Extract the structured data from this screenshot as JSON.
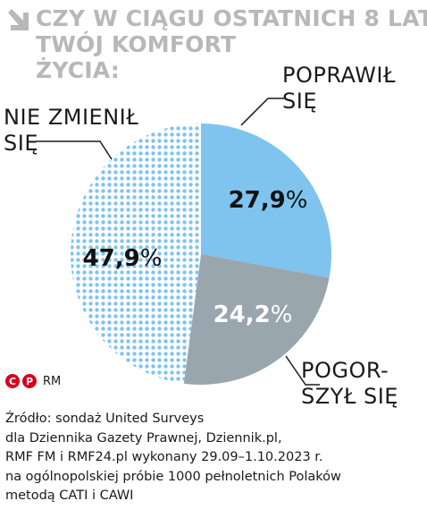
{
  "title_lines": [
    "CZY W CIĄGU OSTATNICH 8 LAT",
    "TWÓJ KOMFORT",
    "ŻYCIA:"
  ],
  "chart_data": {
    "type": "pie",
    "title": "CZY W CIĄGU OSTATNICH 8 LAT TWÓJ KOMFORT ŻYCIA:",
    "slices": [
      {
        "label_lines": [
          "POPRAWIŁ",
          "SIĘ"
        ],
        "value": 27.9,
        "value_text": "27,9",
        "color": "#7ec4ef",
        "text_color": "#111111",
        "pattern": "solid"
      },
      {
        "label_lines": [
          "POGOR-",
          "SZYŁ SIĘ"
        ],
        "value": 24.2,
        "value_text": "24,2",
        "color": "#9aa6ae",
        "text_color": "#ffffff",
        "pattern": "solid"
      },
      {
        "label_lines": [
          "NIE ZMIENIŁ",
          "SIĘ"
        ],
        "value": 47.9,
        "value_text": "47,9",
        "color": "#7ec4ef",
        "text_color": "#111111",
        "pattern": "dots"
      }
    ],
    "percent_sign": "%",
    "start": "12 o'clock",
    "direction": "clockwise"
  },
  "copyright": {
    "c": "C",
    "p": "P",
    "text": "RM"
  },
  "source_lines": [
    "Źródło: sondaż United Surveys",
    "dla Dziennika Gazety Prawnej, Dziennik.pl,",
    "RMF FM i RMF24.pl wykonany 29.09–1.10.2023 r.",
    "na ogólnopolskiej próbie 1000 pełnoletnich Polaków",
    "metodą CATI i CAWI"
  ],
  "colors": {
    "title": "#b8b8b8",
    "accent": "#d7001d",
    "line": "#1a1a1a"
  }
}
